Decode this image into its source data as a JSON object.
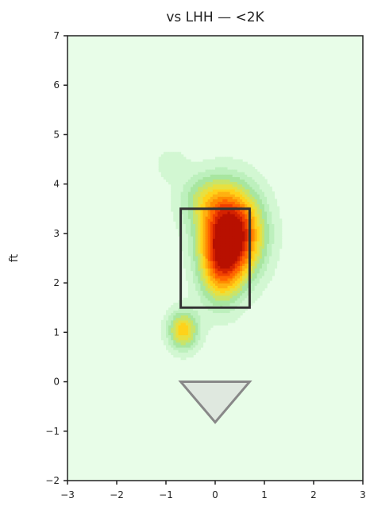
{
  "chart_data": {
    "type": "heatmap",
    "title": "vs LHH — <2K",
    "xlabel": "",
    "ylabel": "ft",
    "xlim": [
      -3,
      3
    ],
    "ylim": [
      -2,
      7
    ],
    "xticks": [
      "−3",
      "−2",
      "−1",
      "0",
      "1",
      "2",
      "3"
    ],
    "yticks": [
      "−2",
      "−1",
      "0",
      "1",
      "2",
      "3",
      "4",
      "5",
      "6",
      "7"
    ],
    "xtick_values": [
      -3,
      -2,
      -1,
      0,
      1,
      2,
      3
    ],
    "ytick_values": [
      -2,
      -1,
      0,
      1,
      2,
      3,
      4,
      5,
      6,
      7
    ],
    "grid": false,
    "strike_zone": {
      "x": [
        -0.7,
        0.7
      ],
      "y": [
        1.5,
        3.5
      ]
    },
    "home_plate": [
      [
        -0.7,
        0
      ],
      [
        0.7,
        0
      ],
      [
        0,
        -0.82
      ]
    ],
    "density_blobs": [
      {
        "x": 0.35,
        "y": 3.0,
        "sx": 0.42,
        "sy": 0.62,
        "w": 1.0
      },
      {
        "x": 0.1,
        "y": 2.3,
        "sx": 0.3,
        "sy": 0.55,
        "w": 0.45
      },
      {
        "x": -0.65,
        "y": 1.05,
        "sx": 0.22,
        "sy": 0.28,
        "w": 0.5
      },
      {
        "x": -0.9,
        "y": 4.4,
        "sx": 0.22,
        "sy": 0.22,
        "w": 0.12
      },
      {
        "x": -0.2,
        "y": 3.7,
        "sx": 0.4,
        "sy": 0.4,
        "w": 0.25
      }
    ],
    "colors": {
      "background": "#e8fde8",
      "contour_levels": [
        "#d2f7d2",
        "#bdf0bd",
        "#a8e6a0",
        "#c9e46a",
        "#e8e040",
        "#ffd21a",
        "#ffb010",
        "#ff8c00",
        "#ff6600",
        "#f04000",
        "#d42200",
        "#b81000"
      ],
      "zone_stroke": "#333333",
      "plate_fill": "#dfe8df",
      "plate_stroke": "#888888"
    }
  }
}
